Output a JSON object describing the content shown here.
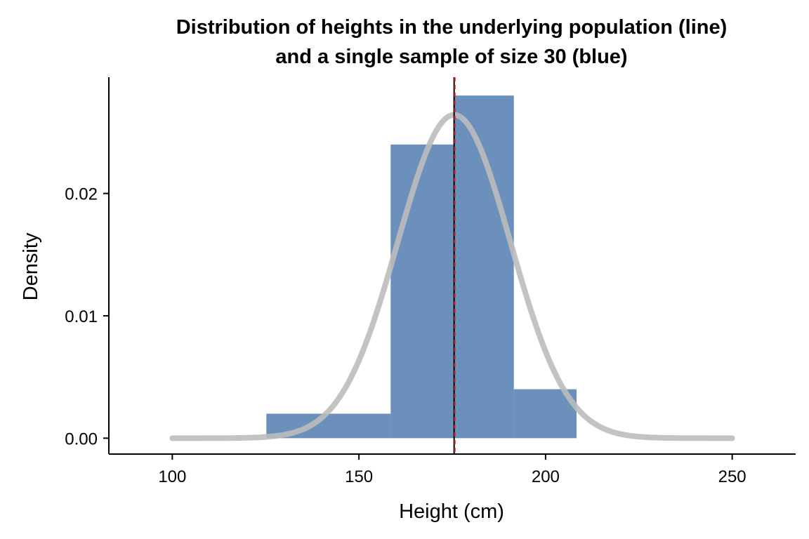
{
  "chart_data": {
    "type": "bar",
    "title_lines": [
      "Distribution of heights in the underlying population (line)",
      "and a single sample of size 30 (blue)"
    ],
    "xlabel": "Height (cm)",
    "ylabel": "Density",
    "xlim": [
      83,
      267
    ],
    "ylim": [
      -0.0013,
      0.0295
    ],
    "x_ticks": [
      100,
      150,
      200,
      250
    ],
    "y_ticks": [
      0.0,
      0.01,
      0.02
    ],
    "y_tick_labels": [
      "0.00",
      "0.01",
      "0.02"
    ],
    "grid": false,
    "histogram": {
      "name": "sample",
      "color": "#4a77ad",
      "bins": [
        {
          "x0": 125.2,
          "x1": 158.5,
          "density": 0.002
        },
        {
          "x0": 158.5,
          "x1": 175.3,
          "density": 0.024
        },
        {
          "x0": 175.3,
          "x1": 191.5,
          "density": 0.028
        },
        {
          "x0": 191.5,
          "x1": 208.3,
          "density": 0.004
        }
      ]
    },
    "population_curve": {
      "name": "population",
      "distribution": "normal",
      "mean": 175.5,
      "sd": 15.1,
      "x_range": [
        100,
        250
      ],
      "color": "#bdbdbd"
    },
    "vlines": [
      {
        "name": "population-mean",
        "x": 175.5,
        "color": "#000000",
        "style": "solid"
      },
      {
        "name": "sample-mean",
        "x": 175.7,
        "color": "#d62728",
        "style": "dashed"
      }
    ]
  }
}
